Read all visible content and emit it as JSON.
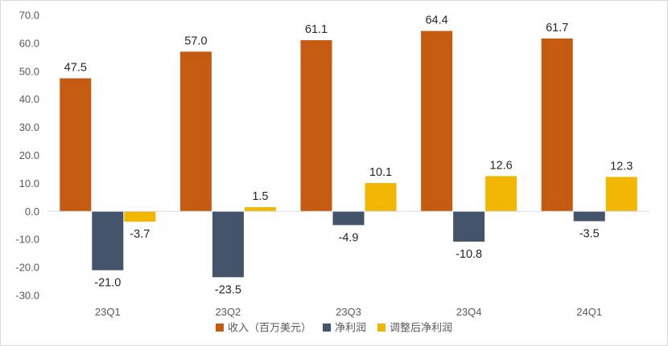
{
  "chart_data": {
    "type": "bar",
    "title": "",
    "xlabel": "",
    "ylabel": "",
    "categories": [
      "23Q1",
      "23Q2",
      "23Q3",
      "23Q4",
      "24Q1"
    ],
    "series": [
      {
        "name": "收入（百万美元）",
        "color": "#C55A11",
        "values": [
          47.5,
          57.0,
          61.1,
          64.4,
          61.7
        ]
      },
      {
        "name": "净利润",
        "color": "#44546A",
        "values": [
          -21.0,
          -23.5,
          -4.9,
          -10.8,
          -3.5
        ]
      },
      {
        "name": "调整后净利润",
        "color": "#F2B705",
        "values": [
          -3.7,
          1.5,
          10.1,
          12.6,
          12.3
        ]
      }
    ],
    "ylim": [
      -30,
      70
    ],
    "yticks": [
      -30.0,
      -20.0,
      -10.0,
      0.0,
      10.0,
      20.0,
      30.0,
      40.0,
      50.0,
      60.0,
      70.0
    ],
    "ytick_labels": [
      "-30.0",
      "-20.0",
      "-10.0",
      "0.0",
      "10.0",
      "20.0",
      "30.0",
      "40.0",
      "50.0",
      "60.0",
      "70.0"
    ],
    "grid": false,
    "legend": "bottom",
    "data_labels": true
  }
}
